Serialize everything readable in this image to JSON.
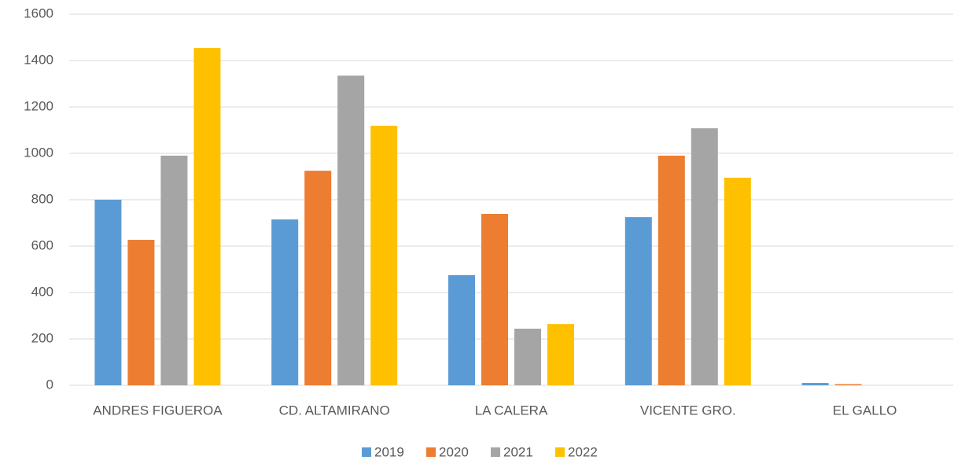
{
  "chart_data": {
    "type": "bar",
    "categories": [
      "ANDRES FIGUEROA",
      "CD. ALTAMIRANO",
      "LA CALERA",
      "VICENTE GRO.",
      "EL GALLO"
    ],
    "series": [
      {
        "name": "2019",
        "color": "#5b9bd5",
        "values": [
          800,
          715,
          475,
          725,
          10
        ]
      },
      {
        "name": "2020",
        "color": "#ed7d31",
        "values": [
          627,
          925,
          739,
          990,
          5
        ]
      },
      {
        "name": "2021",
        "color": "#a5a5a5",
        "values": [
          990,
          1335,
          244,
          1108,
          0
        ]
      },
      {
        "name": "2022",
        "color": "#ffc000",
        "values": [
          1454,
          1119,
          264,
          895,
          0
        ]
      }
    ],
    "ylim": [
      0,
      1600
    ],
    "yticks": [
      0,
      200,
      400,
      600,
      800,
      1000,
      1200,
      1400,
      1600
    ],
    "grid": true,
    "legend": "bottom"
  }
}
